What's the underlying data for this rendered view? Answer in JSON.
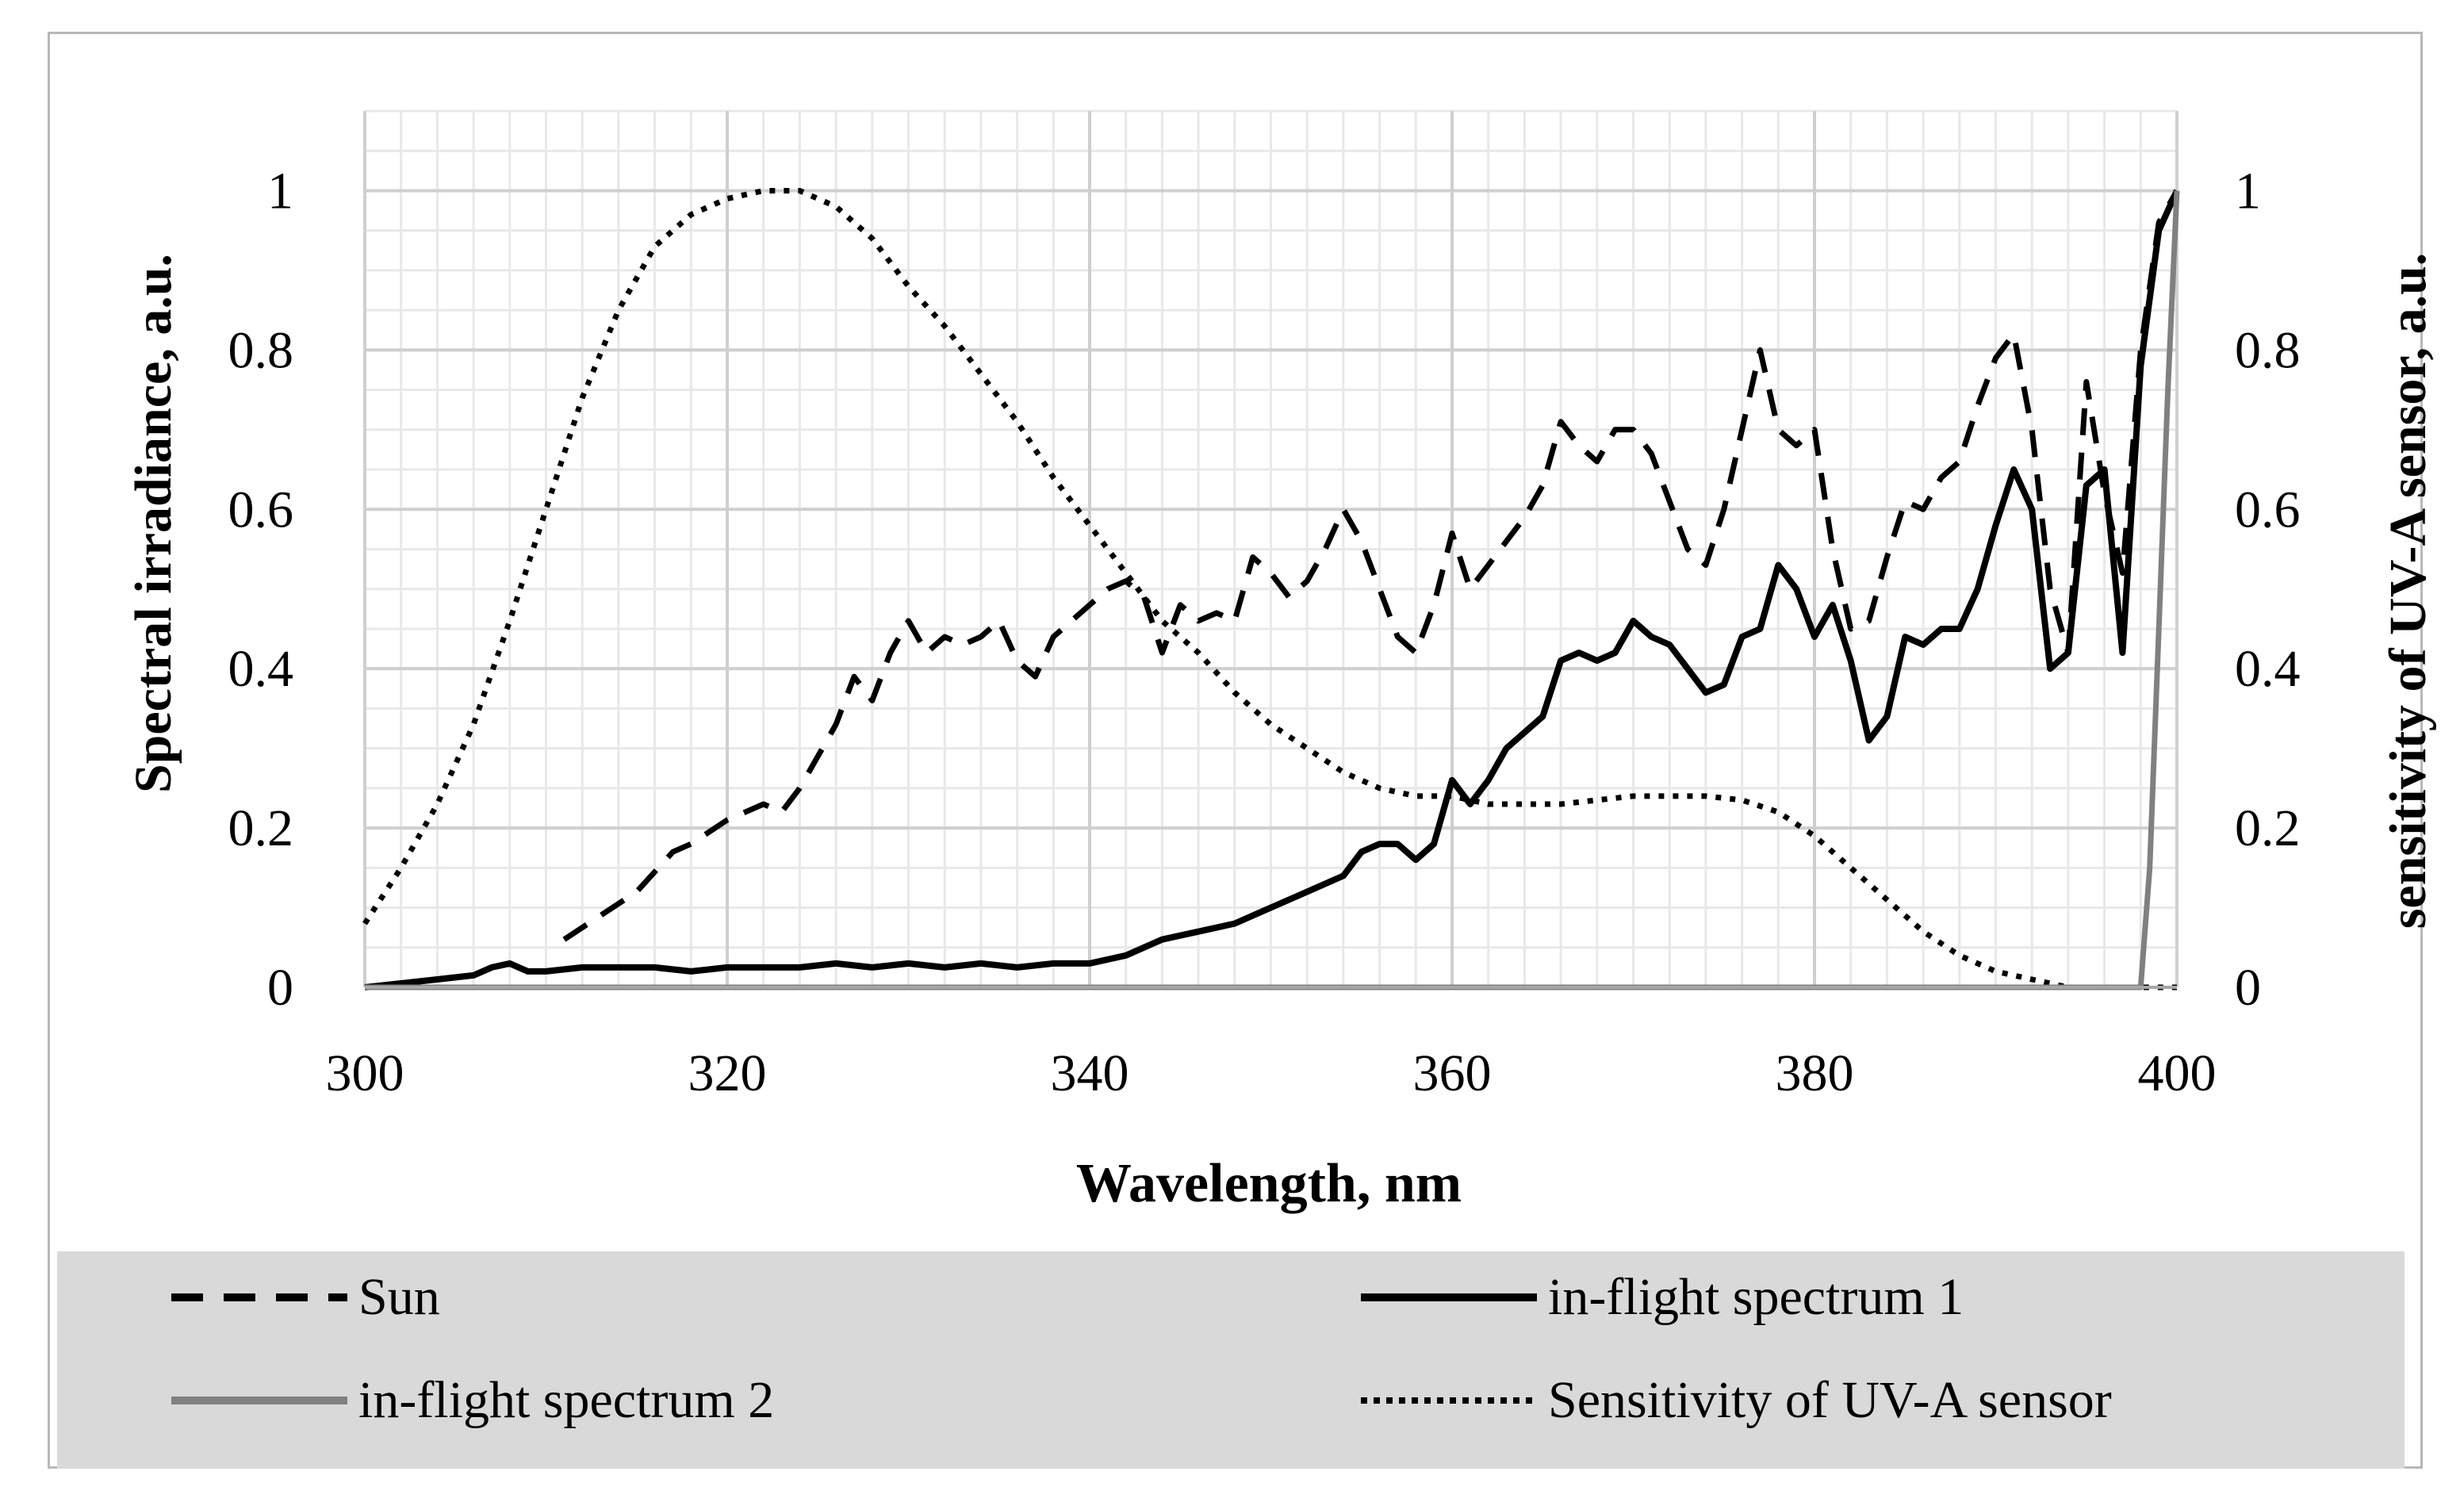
{
  "chart_data": {
    "type": "line",
    "title": "",
    "xlabel": "Wavelength, nm",
    "ylabel": "Spectral irradiance, a.u.",
    "y2label": "sensitivity of UV-A sensor, a.u.",
    "xlim": [
      300,
      400
    ],
    "ylim": [
      0,
      1.1
    ],
    "y2lim": [
      0,
      1.1
    ],
    "x_ticks": [
      300,
      320,
      340,
      360,
      380,
      400
    ],
    "y_ticks": [
      0,
      0.2,
      0.4,
      0.6,
      0.8,
      1
    ],
    "y_tick_labels": [
      "0",
      "0.2",
      "0.4",
      "0.6",
      "0.8",
      "1"
    ],
    "y2_ticks": [
      0,
      0.2,
      0.4,
      0.6,
      0.8,
      1
    ],
    "y2_tick_labels": [
      "0",
      "0.2",
      "0.4",
      "0.6",
      "0.8",
      "1"
    ],
    "grid": true,
    "legend_position": "bottom",
    "series": [
      {
        "name": "Sun",
        "style": "dashed",
        "color": "#000000",
        "x": [
          311,
          313,
          315,
          317,
          318,
          320,
          322,
          323,
          324,
          325,
          326,
          327,
          328,
          329,
          330,
          331,
          332,
          333,
          334,
          335,
          336,
          337,
          338,
          339,
          340,
          341,
          342,
          343,
          344,
          345,
          346,
          347,
          348,
          349,
          350,
          351,
          352,
          353,
          354,
          355,
          356,
          357,
          358,
          359,
          360,
          361,
          362,
          363,
          364,
          365,
          366,
          367,
          368,
          369,
          370,
          371,
          372,
          373,
          374,
          375,
          376,
          377,
          378,
          379,
          380,
          381,
          382,
          383,
          384,
          385,
          386,
          387,
          388,
          389,
          390,
          391,
          392,
          393,
          394,
          395,
          396,
          397,
          398,
          399,
          400
        ],
        "y": [
          0.06,
          0.09,
          0.12,
          0.17,
          0.18,
          0.21,
          0.23,
          0.22,
          0.25,
          0.29,
          0.33,
          0.39,
          0.36,
          0.42,
          0.46,
          0.42,
          0.44,
          0.43,
          0.44,
          0.46,
          0.41,
          0.39,
          0.44,
          0.46,
          0.48,
          0.5,
          0.51,
          0.49,
          0.42,
          0.48,
          0.46,
          0.47,
          0.46,
          0.54,
          0.52,
          0.49,
          0.51,
          0.55,
          0.6,
          0.56,
          0.5,
          0.44,
          0.42,
          0.48,
          0.57,
          0.5,
          0.53,
          0.56,
          0.59,
          0.63,
          0.71,
          0.68,
          0.66,
          0.7,
          0.7,
          0.67,
          0.61,
          0.55,
          0.53,
          0.6,
          0.7,
          0.8,
          0.7,
          0.68,
          0.7,
          0.55,
          0.45,
          0.46,
          0.54,
          0.61,
          0.6,
          0.64,
          0.66,
          0.73,
          0.79,
          0.82,
          0.7,
          0.5,
          0.42,
          0.76,
          0.62,
          0.52,
          0.8,
          0.96,
          1.0
        ]
      },
      {
        "name": "in-flight spectrum 1",
        "style": "solid",
        "color": "#000000",
        "x": [
          300,
          302,
          304,
          306,
          307,
          308,
          309,
          310,
          312,
          314,
          316,
          318,
          320,
          322,
          324,
          326,
          328,
          330,
          332,
          334,
          336,
          338,
          340,
          342,
          344,
          346,
          348,
          350,
          352,
          354,
          355,
          356,
          357,
          358,
          359,
          360,
          361,
          362,
          363,
          364,
          365,
          366,
          367,
          368,
          369,
          370,
          371,
          372,
          373,
          374,
          375,
          376,
          377,
          378,
          379,
          380,
          381,
          382,
          383,
          384,
          385,
          386,
          387,
          388,
          389,
          390,
          391,
          392,
          393,
          394,
          395,
          396,
          397,
          398,
          399,
          400
        ],
        "y": [
          0.0,
          0.005,
          0.01,
          0.015,
          0.025,
          0.03,
          0.02,
          0.02,
          0.025,
          0.025,
          0.025,
          0.02,
          0.025,
          0.025,
          0.025,
          0.03,
          0.025,
          0.03,
          0.025,
          0.03,
          0.025,
          0.03,
          0.03,
          0.04,
          0.06,
          0.07,
          0.08,
          0.1,
          0.12,
          0.14,
          0.17,
          0.18,
          0.18,
          0.16,
          0.18,
          0.26,
          0.23,
          0.26,
          0.3,
          0.32,
          0.34,
          0.41,
          0.42,
          0.41,
          0.42,
          0.46,
          0.44,
          0.43,
          0.4,
          0.37,
          0.38,
          0.44,
          0.45,
          0.53,
          0.5,
          0.44,
          0.48,
          0.41,
          0.31,
          0.34,
          0.44,
          0.43,
          0.45,
          0.45,
          0.5,
          0.58,
          0.65,
          0.6,
          0.4,
          0.42,
          0.63,
          0.65,
          0.42,
          0.78,
          0.95,
          1.0
        ]
      },
      {
        "name": "in-flight spectrum 2",
        "style": "solid",
        "color": "#808080",
        "x": [
          300,
          310,
          320,
          330,
          340,
          350,
          360,
          370,
          380,
          390,
          398,
          398.5,
          399,
          399.5,
          400
        ],
        "y": [
          0,
          0,
          0,
          0,
          0,
          0,
          0,
          0,
          0,
          0,
          0,
          0.15,
          0.45,
          0.75,
          1.0
        ]
      },
      {
        "name": "Sensitivity of UV-A sensor",
        "style": "dotted",
        "color": "#000000",
        "axis": "right",
        "x": [
          300,
          302,
          304,
          306,
          308,
          310,
          312,
          314,
          316,
          318,
          320,
          322,
          324,
          326,
          328,
          330,
          332,
          334,
          336,
          338,
          340,
          342,
          344,
          346,
          348,
          350,
          352,
          354,
          356,
          358,
          360,
          362,
          364,
          366,
          368,
          370,
          372,
          374,
          376,
          378,
          380,
          382,
          384,
          386,
          388,
          390,
          392,
          394,
          396,
          398,
          400
        ],
        "y": [
          0.08,
          0.15,
          0.23,
          0.33,
          0.46,
          0.6,
          0.74,
          0.85,
          0.93,
          0.97,
          0.99,
          1.0,
          1.0,
          0.98,
          0.94,
          0.88,
          0.83,
          0.77,
          0.71,
          0.64,
          0.58,
          0.52,
          0.46,
          0.42,
          0.37,
          0.33,
          0.3,
          0.27,
          0.25,
          0.24,
          0.24,
          0.23,
          0.23,
          0.23,
          0.235,
          0.24,
          0.24,
          0.24,
          0.235,
          0.22,
          0.19,
          0.15,
          0.11,
          0.07,
          0.04,
          0.02,
          0.01,
          0.0,
          0.0,
          0.0,
          0.0
        ]
      }
    ]
  }
}
